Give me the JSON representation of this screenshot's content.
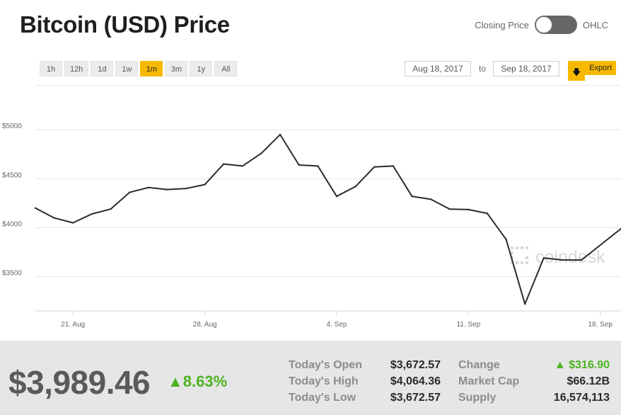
{
  "header": {
    "title": "Bitcoin (USD) Price",
    "toggle_left": "Closing Price",
    "toggle_right": "OHLC"
  },
  "ranges": [
    "1h",
    "12h",
    "1d",
    "1w",
    "1m",
    "3m",
    "1y",
    "All"
  ],
  "active_range": "1m",
  "date_range": {
    "from": "Aug 18, 2017",
    "to_label": "to",
    "to": "Sep 18, 2017"
  },
  "export_label": "Export",
  "watermark": "coindesk",
  "colors": {
    "accent": "#f6b800",
    "line": "#2b2b2b",
    "positive": "#4cb321"
  },
  "chart_data": {
    "type": "line",
    "title": "",
    "xlabel": "",
    "ylabel": "",
    "ylim": [
      3150,
      5450
    ],
    "xlim": [
      0,
      31.1
    ],
    "x_ticks": [
      {
        "x": 2,
        "label": "21. Aug"
      },
      {
        "x": 9,
        "label": "28. Aug"
      },
      {
        "x": 16,
        "label": "4. Sep"
      },
      {
        "x": 23,
        "label": "11. Sep"
      },
      {
        "x": 30,
        "label": "18. Sep"
      }
    ],
    "y_ticks": [
      {
        "y": 3500,
        "label": "$3500"
      },
      {
        "y": 4000,
        "label": "$4000"
      },
      {
        "y": 4500,
        "label": "$4500"
      },
      {
        "y": 5000,
        "label": "$5000"
      }
    ],
    "grid": true,
    "series": [
      {
        "values": [
          [
            0,
            4200
          ],
          [
            1,
            4100
          ],
          [
            2,
            4050
          ],
          [
            3,
            4140
          ],
          [
            4,
            4190
          ],
          [
            5,
            4360
          ],
          [
            6,
            4410
          ],
          [
            7,
            4390
          ],
          [
            8,
            4400
          ],
          [
            9,
            4440
          ],
          [
            10,
            4650
          ],
          [
            11,
            4630
          ],
          [
            12,
            4760
          ],
          [
            13,
            4950
          ],
          [
            14,
            4640
          ],
          [
            15,
            4630
          ],
          [
            16,
            4320
          ],
          [
            17,
            4420
          ],
          [
            18,
            4620
          ],
          [
            19,
            4630
          ],
          [
            20,
            4320
          ],
          [
            21,
            4290
          ],
          [
            22,
            4190
          ],
          [
            23,
            4185
          ],
          [
            24,
            4145
          ],
          [
            25,
            3880
          ],
          [
            26,
            3220
          ],
          [
            27,
            3690
          ],
          [
            28,
            3670
          ],
          [
            29,
            3670
          ],
          [
            31.1,
            3990
          ]
        ]
      }
    ]
  },
  "footer": {
    "price": "$3,989.46",
    "pct": "▲8.63%",
    "stats": [
      {
        "label": "Today's Open",
        "value": "$3,672.57"
      },
      {
        "label": "Today's High",
        "value": "$4,064.36"
      },
      {
        "label": "Today's Low",
        "value": "$3,672.57"
      }
    ],
    "stats2": [
      {
        "label": "Change",
        "value": "▲ $316.90"
      },
      {
        "label": "Market Cap",
        "value": "$66.12B"
      },
      {
        "label": "Supply",
        "value": "16,574,113"
      }
    ]
  }
}
